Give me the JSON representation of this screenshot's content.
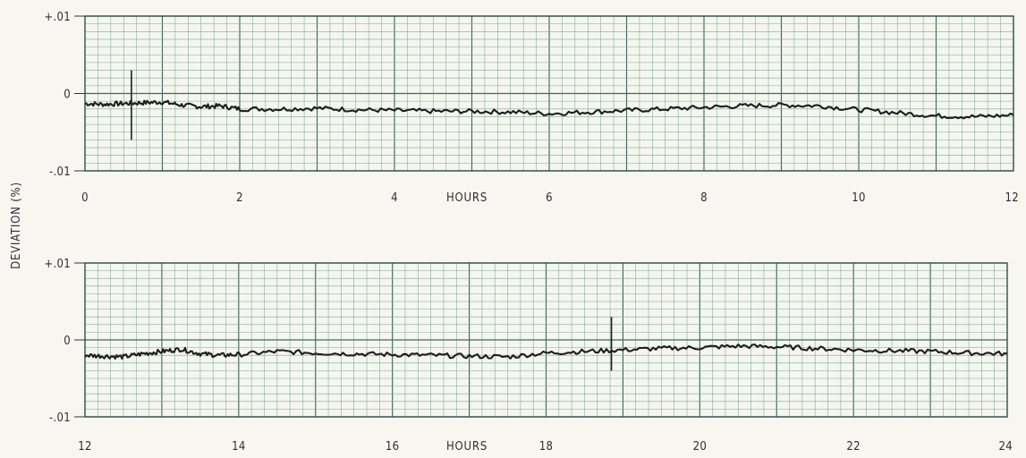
{
  "ylabel": "DEVIATION (%)",
  "chart_data": [
    {
      "type": "line",
      "xlabel": "HOURS",
      "ylabel": "DEVIATION (%)",
      "xlim": [
        0,
        12
      ],
      "ylim": [
        -0.01,
        0.01
      ],
      "x_ticks": [
        "0",
        "2",
        "4",
        "6",
        "8",
        "10",
        "12"
      ],
      "y_ticks": [
        "+.01",
        "0",
        "-.01"
      ],
      "grid": true,
      "series": [
        {
          "x": [
            0,
            0.25,
            0.5,
            0.75,
            1.0,
            1.25,
            1.5,
            1.75,
            2.0,
            2.5,
            3.0,
            3.5,
            4.0,
            4.5,
            5.0,
            5.5,
            6.0,
            6.5,
            7.0,
            7.5,
            8.0,
            8.5,
            9.0,
            9.5,
            10.0,
            10.5,
            11.0,
            11.5,
            12.0
          ],
          "y": [
            -0.0013,
            -0.0014,
            -0.0013,
            -0.0012,
            -0.0011,
            -0.0015,
            -0.0017,
            -0.0016,
            -0.002,
            -0.002,
            -0.0019,
            -0.0021,
            -0.0022,
            -0.0023,
            -0.0023,
            -0.0024,
            -0.0026,
            -0.0024,
            -0.0022,
            -0.002,
            -0.0018,
            -0.0016,
            -0.0015,
            -0.0016,
            -0.0021,
            -0.0025,
            -0.0029,
            -0.003,
            -0.0028
          ]
        }
      ],
      "spikes": [
        {
          "x": 0.6,
          "ymin": -0.006,
          "ymax": 0.003
        }
      ]
    },
    {
      "type": "line",
      "xlabel": "HOURS",
      "ylabel": "DEVIATION (%)",
      "xlim": [
        12,
        24
      ],
      "ylim": [
        -0.01,
        0.01
      ],
      "x_ticks": [
        "12",
        "14",
        "16",
        "18",
        "20",
        "22",
        "24"
      ],
      "y_ticks": [
        "+.01",
        "0",
        "-.01"
      ],
      "grid": true,
      "series": [
        {
          "x": [
            12.0,
            12.25,
            12.5,
            12.75,
            13.0,
            13.25,
            13.5,
            13.75,
            14.0,
            14.5,
            15.0,
            15.5,
            16.0,
            16.5,
            17.0,
            17.5,
            18.0,
            18.5,
            19.0,
            19.5,
            20.0,
            20.5,
            21.0,
            21.5,
            22.0,
            22.5,
            23.0,
            23.5,
            24.0
          ],
          "y": [
            -0.002,
            -0.0021,
            -0.0022,
            -0.0018,
            -0.0015,
            -0.0012,
            -0.0018,
            -0.002,
            -0.0019,
            -0.0015,
            -0.0017,
            -0.0018,
            -0.0019,
            -0.002,
            -0.0021,
            -0.0022,
            -0.0017,
            -0.0015,
            -0.0013,
            -0.0011,
            -0.001,
            -0.0008,
            -0.0009,
            -0.0011,
            -0.0013,
            -0.0014,
            -0.0015,
            -0.0017,
            -0.0018
          ]
        }
      ],
      "spikes": [
        {
          "x": 18.85,
          "ymin": -0.004,
          "ymax": 0.003
        }
      ]
    }
  ]
}
